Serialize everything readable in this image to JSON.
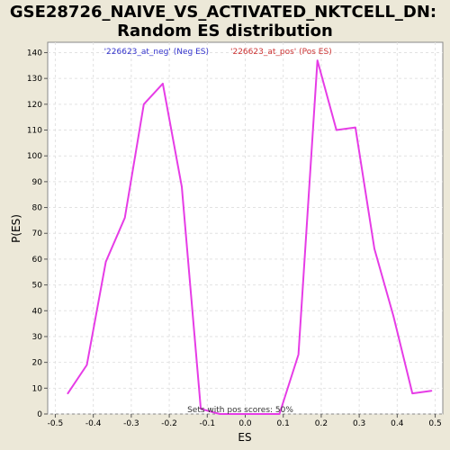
{
  "chart_data": {
    "type": "line",
    "title_line1": "GSE28726_NAIVE_VS_ACTIVATED_NKTCELL_DN:",
    "title_line2": "Random ES distribution",
    "xlabel": "ES",
    "ylabel": "P(ES)",
    "xlim": [
      -0.52,
      0.52
    ],
    "ylim": [
      0,
      144
    ],
    "xticks": [
      -0.5,
      -0.4,
      -0.3,
      -0.2,
      -0.1,
      0.0,
      0.1,
      0.2,
      0.3,
      0.4,
      0.5
    ],
    "xtick_labels": [
      "-0.5",
      "-0.4",
      "-0.3",
      "-0.2",
      "-0.1",
      "0.0",
      "0.1",
      "0.2",
      "0.3",
      "0.4",
      "0.5"
    ],
    "yticks": [
      0,
      10,
      20,
      30,
      40,
      50,
      60,
      70,
      80,
      90,
      100,
      110,
      120,
      130,
      140
    ],
    "ytick_labels": [
      "0",
      "10",
      "20",
      "30",
      "40",
      "50",
      "60",
      "70",
      "80",
      "90",
      "100",
      "110",
      "120",
      "130",
      "140"
    ],
    "grid": true,
    "series": [
      {
        "name": "ES distribution",
        "color": "#e63ce6",
        "x": [
          -0.467,
          -0.417,
          -0.367,
          -0.317,
          -0.267,
          -0.217,
          -0.167,
          -0.117,
          -0.067,
          0.09,
          0.14,
          0.19,
          0.24,
          0.29,
          0.34,
          0.39,
          0.44,
          0.49
        ],
        "y": [
          8,
          19,
          59,
          76,
          120,
          128,
          88,
          2,
          0,
          0,
          23,
          137,
          110,
          111,
          64,
          38,
          8,
          9
        ]
      }
    ],
    "legend": {
      "placement": "top-center",
      "neg_label": "'226623_at_neg' (Neg ES)",
      "neg_color": "#3333cc",
      "pos_label": "'226623_at_pos' (Pos ES)",
      "pos_color": "#cc3333"
    },
    "annotation": "Sets with pos scores: 50%"
  }
}
